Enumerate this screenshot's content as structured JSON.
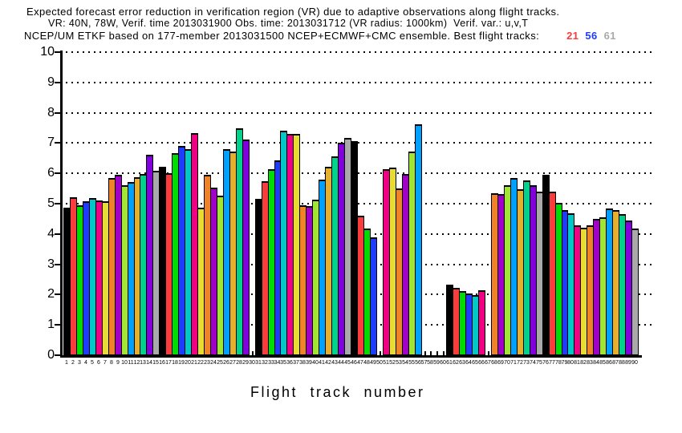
{
  "title": {
    "line1": "Expected forecast error reduction in verification region (VR) due to adaptive observations along flight tracks.",
    "line2": "VR: 40N, 78W, Verif. time 2013031900 Obs. time: 2013031712 (VR radius: 1000km)  Verif. var.: u,v,T",
    "line3_main": "NCEP/UM ETKF based on 177-member 2013031500 NCEP+ECMWF+CMC ensemble. Best flight tracks:",
    "best_tracks": [
      {
        "label": "21",
        "color": "#fa3c3c"
      },
      {
        "label": "56",
        "color": "#1e3cff"
      },
      {
        "label": "61",
        "color": "#aaaaaa"
      }
    ]
  },
  "chart_data": {
    "type": "bar",
    "title": "Expected forecast error reduction in verification region (VR) due to adaptive observations along flight tracks.",
    "xlabel": "Flight track number",
    "ylabel": "",
    "ylim": [
      0,
      10
    ],
    "ytick_step": 1,
    "ytick_labels": [
      "0",
      "1",
      "2",
      "3",
      "4",
      "5",
      "6",
      "7",
      "8",
      "9",
      "10"
    ],
    "grid": "dotted horizontal gridlines at every integer 1-10",
    "x_tick_labels_range": [
      1,
      90
    ],
    "palette_cycle_note": "bar color = palette_cycle[(track-1) mod 15]; GrADS rainbow colors 1-15",
    "palette_cycle": [
      "#000000",
      "#fa3c3c",
      "#00dc00",
      "#1e3cff",
      "#00c8c8",
      "#f00082",
      "#e6dc32",
      "#f08228",
      "#a000c8",
      "#a0e632",
      "#00a0ff",
      "#e6af2d",
      "#00d28c",
      "#8200dc",
      "#aaaaaa"
    ],
    "missing_tracks": [
      30,
      50,
      57,
      58,
      59,
      60,
      67
    ],
    "values": [
      4.88,
      5.22,
      4.95,
      5.08,
      5.18,
      5.1,
      5.07,
      5.85,
      5.94,
      5.62,
      5.72,
      5.88,
      5.97,
      6.62,
      6.08,
      6.22,
      6.01,
      6.67,
      6.91,
      6.8,
      7.33,
      4.86,
      5.94,
      5.53,
      5.26,
      6.8,
      6.71,
      7.49,
      7.11,
      null,
      5.17,
      5.74,
      6.14,
      6.43,
      7.4,
      7.29,
      7.29,
      4.96,
      4.91,
      5.13,
      5.79,
      6.22,
      6.56,
      7.0,
      7.18,
      7.06,
      4.6,
      4.18,
      3.89,
      null,
      6.14,
      6.18,
      5.5,
      5.97,
      6.71,
      7.62,
      null,
      null,
      null,
      null,
      2.32,
      2.22,
      2.12,
      2.05,
      1.98,
      2.14,
      null,
      5.35,
      5.31,
      5.61,
      5.85,
      5.48,
      5.77,
      5.62,
      5.41,
      5.94,
      5.41,
      5.03,
      4.8,
      4.68,
      4.29,
      4.2,
      4.29,
      4.49,
      4.56,
      4.84,
      4.78,
      4.65,
      4.44,
      4.18
    ]
  }
}
